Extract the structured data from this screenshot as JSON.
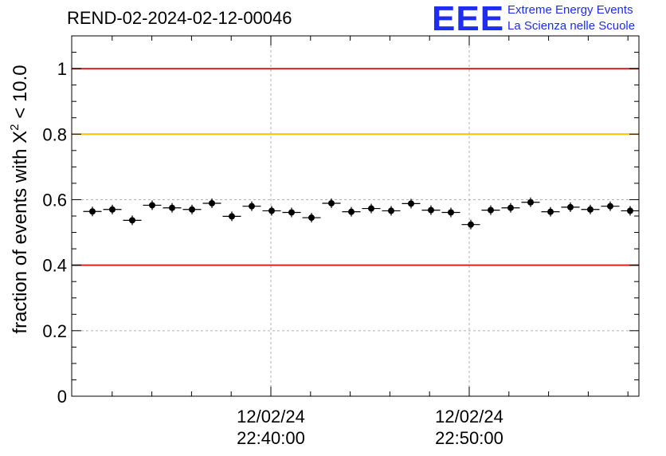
{
  "title": "REND-02-2024-02-12-00046",
  "logo": {
    "mark": "EEE",
    "line1": "Extreme Energy Events",
    "line2": "La Scienza nelle Scuole"
  },
  "chart_data": {
    "type": "scatter",
    "title": "REND-02-2024-02-12-00046",
    "ylabel_prefix": "fraction of events with X",
    "ylabel_sup": "2",
    "ylabel_suffix": " < 10.0",
    "ylim": [
      0,
      1.1
    ],
    "yticks": [
      0,
      0.2,
      0.4,
      0.6,
      0.8,
      1
    ],
    "ytick_labels": [
      "0",
      "0.2",
      "0.4",
      "0.6",
      "0.8",
      "1"
    ],
    "xticks": [
      {
        "date": "12/02/24",
        "time": "22:40:00"
      },
      {
        "date": "12/02/24",
        "time": "22:50:00"
      }
    ],
    "grid": true,
    "reference_lines": [
      {
        "y": 1.0,
        "color": "#e02020"
      },
      {
        "y": 0.8,
        "color": "#ffc000"
      },
      {
        "y": 0.4,
        "color": "#e02020"
      }
    ],
    "points": [
      0.564,
      0.57,
      0.537,
      0.583,
      0.575,
      0.57,
      0.589,
      0.549,
      0.58,
      0.566,
      0.561,
      0.545,
      0.589,
      0.563,
      0.573,
      0.566,
      0.588,
      0.568,
      0.561,
      0.524,
      0.568,
      0.575,
      0.592,
      0.563,
      0.577,
      0.57,
      0.58,
      0.566
    ],
    "point_color": "#000000"
  }
}
